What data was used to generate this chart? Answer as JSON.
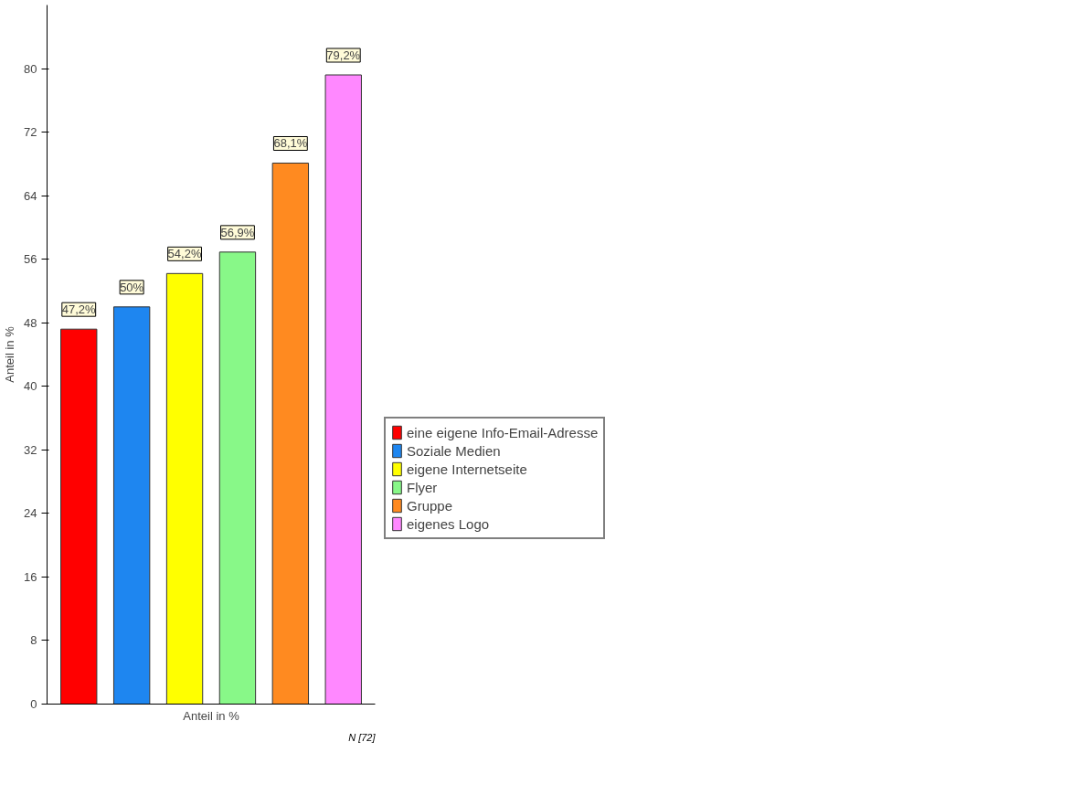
{
  "chart_data": {
    "type": "bar",
    "xlabel": "Anteil in %",
    "ylabel": "Anteil in %",
    "categories": [
      null,
      null,
      null,
      null,
      null,
      null
    ],
    "series": [
      {
        "name": "eine eigene Info-Email-Adresse",
        "color": "#ff0000",
        "values": [
          47.2,
          null,
          null,
          null,
          null,
          null
        ],
        "value_labels": [
          "47,2%",
          null,
          null,
          null,
          null,
          null
        ]
      },
      {
        "name": "Soziale Medien",
        "color": "#1e86f0",
        "values": [
          null,
          50,
          null,
          null,
          null,
          null
        ],
        "value_labels": [
          null,
          "50%",
          null,
          null,
          null,
          null
        ]
      },
      {
        "name": "eigene Internetseite",
        "color": "#ffff00",
        "values": [
          null,
          null,
          54.2,
          null,
          null,
          null
        ],
        "value_labels": [
          null,
          null,
          "54,2%",
          null,
          null,
          null
        ]
      },
      {
        "name": "Flyer",
        "color": "#88f888",
        "values": [
          null,
          null,
          null,
          56.9,
          null,
          null
        ],
        "value_labels": [
          null,
          null,
          null,
          "56,9%",
          null,
          null
        ]
      },
      {
        "name": "Gruppe",
        "color": "#ff8a20",
        "values": [
          null,
          null,
          null,
          null,
          68.1,
          null
        ],
        "value_labels": [
          null,
          null,
          null,
          null,
          "68,1%",
          null
        ]
      },
      {
        "name": "eigenes Logo",
        "color": "#ff88ff",
        "values": [
          null,
          null,
          null,
          null,
          null,
          79.2
        ],
        "value_labels": [
          null,
          null,
          null,
          null,
          null,
          "79,2%"
        ]
      }
    ],
    "ylim": [
      0,
      88
    ],
    "yticks": [
      0,
      8,
      16,
      24,
      32,
      40,
      48,
      56,
      64,
      72,
      80
    ],
    "tick_labels": "y",
    "legend": "right",
    "grid": false,
    "annotations": [
      "N [72]"
    ]
  }
}
